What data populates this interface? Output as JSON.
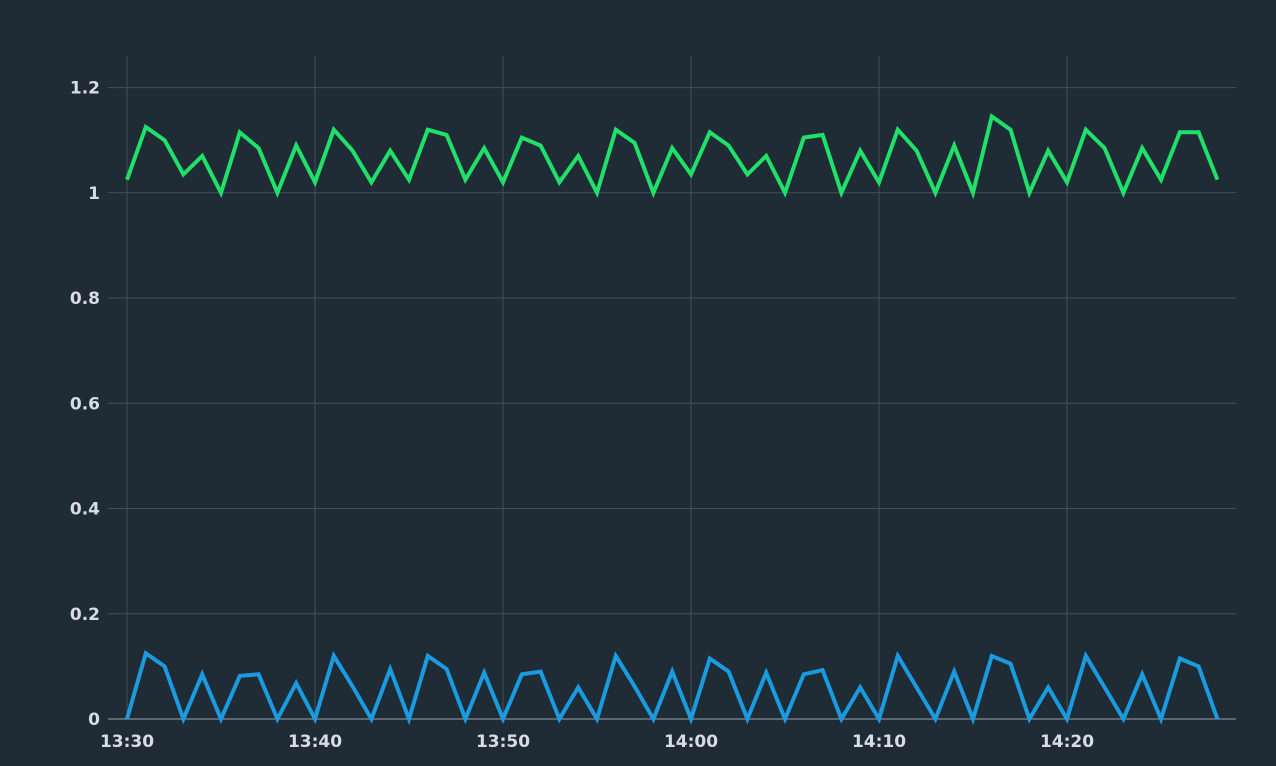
{
  "chart_data": {
    "type": "line",
    "title": "",
    "xlabel": "",
    "ylabel": "",
    "x": [
      "13:30",
      "13:31",
      "13:32",
      "13:33",
      "13:34",
      "13:35",
      "13:36",
      "13:37",
      "13:38",
      "13:39",
      "13:40",
      "13:41",
      "13:42",
      "13:43",
      "13:44",
      "13:45",
      "13:46",
      "13:47",
      "13:48",
      "13:49",
      "13:50",
      "13:51",
      "13:52",
      "13:53",
      "13:54",
      "13:55",
      "13:56",
      "13:57",
      "13:58",
      "13:59",
      "14:00",
      "14:01",
      "14:02",
      "14:03",
      "14:04",
      "14:05",
      "14:06",
      "14:07",
      "14:08",
      "14:09",
      "14:10",
      "14:11",
      "14:12",
      "14:13",
      "14:14",
      "14:15",
      "14:16",
      "14:17",
      "14:18",
      "14:19",
      "14:20",
      "14:21",
      "14:22",
      "14:23",
      "14:24",
      "14:25",
      "14:26",
      "14:27",
      "14:28"
    ],
    "x_ticks": [
      "13:30",
      "13:40",
      "13:50",
      "14:00",
      "14:10",
      "14:20"
    ],
    "y_ticks": [
      "0",
      "0.2",
      "0.4",
      "0.6",
      "0.8",
      "1",
      "1.2"
    ],
    "ylim": [
      0,
      1.26
    ],
    "grid": true,
    "legend": "none",
    "series": [
      {
        "name": "",
        "color": "#20e06a",
        "values": [
          1.025,
          1.125,
          1.1,
          1.035,
          1.07,
          1.0,
          1.115,
          1.085,
          1.0,
          1.09,
          1.02,
          1.12,
          1.08,
          1.02,
          1.08,
          1.025,
          1.12,
          1.11,
          1.025,
          1.085,
          1.02,
          1.105,
          1.09,
          1.02,
          1.07,
          1.0,
          1.12,
          1.095,
          1.0,
          1.085,
          1.035,
          1.115,
          1.09,
          1.035,
          1.07,
          1.0,
          1.105,
          1.11,
          1.0,
          1.08,
          1.02,
          1.12,
          1.08,
          1.0,
          1.09,
          1.0,
          1.145,
          1.12,
          1.0,
          1.08,
          1.02,
          1.12,
          1.085,
          1.0,
          1.085,
          1.025,
          1.115,
          1.115,
          1.025
        ]
      },
      {
        "name": "",
        "color": "#1a9be0",
        "values": [
          0.0,
          0.125,
          0.1,
          0.0,
          0.085,
          0.0,
          0.082,
          0.085,
          0.0,
          0.068,
          0.0,
          0.12,
          0.062,
          0.0,
          0.095,
          0.0,
          0.12,
          0.095,
          0.0,
          0.088,
          0.0,
          0.085,
          0.09,
          0.0,
          0.06,
          0.0,
          0.12,
          0.062,
          0.0,
          0.09,
          0.0,
          0.115,
          0.09,
          0.0,
          0.088,
          0.0,
          0.085,
          0.093,
          0.0,
          0.06,
          0.0,
          0.12,
          0.06,
          0.0,
          0.09,
          0.0,
          0.12,
          0.105,
          0.0,
          0.06,
          0.0,
          0.12,
          0.06,
          0.0,
          0.085,
          0.0,
          0.115,
          0.1,
          0.0
        ]
      }
    ]
  }
}
